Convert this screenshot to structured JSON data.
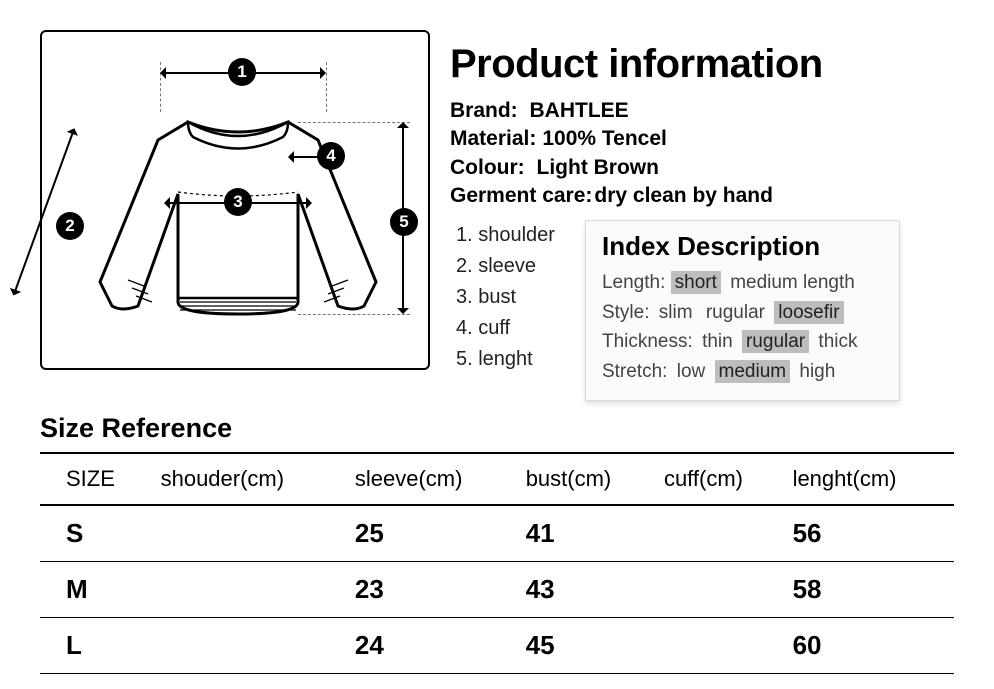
{
  "title": "Product information",
  "meta": {
    "brand_label": "Brand:",
    "brand_value": "BAHTLEE",
    "material_label": "Material:",
    "material_value": "100% Tencel",
    "colour_label": "Colour:",
    "colour_value": "Light Brown",
    "care_label": "Germent care:",
    "care_value": "dry clean by hand"
  },
  "diagram_legend": {
    "l1": "1. shoulder",
    "l2": "2. sleeve",
    "l3": "3. bust",
    "l4": "4. cuff",
    "l5": "5. lenght"
  },
  "index": {
    "title": "Index Description",
    "length_label": "Length:",
    "length_opts": [
      "short",
      "medium length"
    ],
    "length_selected": "short",
    "style_label": "Style:",
    "style_opts": [
      "slim",
      "rugular",
      "loosefir"
    ],
    "style_selected": "loosefir",
    "thickness_label": "Thickness:",
    "thickness_opts": [
      "thin",
      "rugular",
      "thick"
    ],
    "thickness_selected": "rugular",
    "stretch_label": "Stretch:",
    "stretch_opts": [
      "low",
      "medium",
      "high"
    ],
    "stretch_selected": "medium"
  },
  "size_ref_title": "Size Reference",
  "table": {
    "columns": [
      "SIZE",
      "shouder(cm)",
      "sleeve(cm)",
      "bust(cm)",
      "cuff(cm)",
      "lenght(cm)"
    ],
    "rows": [
      [
        "S",
        "",
        "25",
        "41",
        "",
        "56"
      ],
      [
        "M",
        "",
        "23",
        "43",
        "",
        "58"
      ],
      [
        "L",
        "",
        "24",
        "45",
        "",
        "60"
      ]
    ]
  },
  "colors": {
    "highlight": "#bdbdbd",
    "text": "#000000",
    "bg": "#ffffff"
  },
  "diagram_badges": [
    "1",
    "2",
    "3",
    "4",
    "5"
  ]
}
